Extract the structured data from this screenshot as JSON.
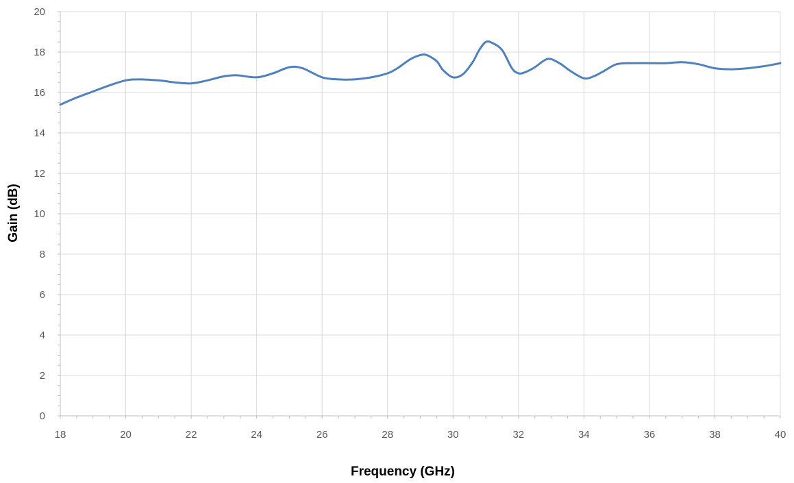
{
  "chart_data": {
    "type": "line",
    "title": "",
    "xlabel": "Frequency (GHz)",
    "ylabel": "Gain (dB)",
    "xlim": [
      18,
      40
    ],
    "ylim": [
      0,
      20
    ],
    "x_ticks": [
      "18",
      "20",
      "22",
      "24",
      "26",
      "28",
      "30",
      "32",
      "34",
      "36",
      "38",
      "40"
    ],
    "y_ticks": [
      "0",
      "2",
      "4",
      "6",
      "8",
      "10",
      "12",
      "14",
      "16",
      "18",
      "20"
    ],
    "grid": true,
    "legend": "none",
    "series": [
      {
        "color": "#4f81bd",
        "x": [
          18,
          18.5,
          19,
          19.5,
          20,
          20.4,
          21,
          21.5,
          22,
          22.5,
          23,
          23.4,
          24,
          24.5,
          25,
          25.4,
          26,
          26.5,
          27,
          27.5,
          28,
          28.3,
          28.7,
          29,
          29.2,
          29.5,
          29.7,
          30,
          30.3,
          30.6,
          30.8,
          31,
          31.2,
          31.5,
          31.8,
          32,
          32.2,
          32.5,
          32.8,
          33,
          33.3,
          33.6,
          34,
          34.3,
          34.6,
          35,
          35.5,
          36,
          36.5,
          37,
          37.5,
          38,
          38.5,
          39,
          39.5,
          40
        ],
        "y": [
          15.4,
          15.75,
          16.05,
          16.35,
          16.6,
          16.65,
          16.6,
          16.5,
          16.45,
          16.6,
          16.8,
          16.85,
          16.75,
          16.95,
          17.25,
          17.2,
          16.75,
          16.65,
          16.65,
          16.75,
          16.95,
          17.2,
          17.65,
          17.85,
          17.85,
          17.55,
          17.1,
          16.75,
          16.9,
          17.5,
          18.1,
          18.5,
          18.45,
          18.1,
          17.2,
          16.95,
          17.0,
          17.25,
          17.6,
          17.65,
          17.4,
          17.05,
          16.7,
          16.8,
          17.05,
          17.4,
          17.45,
          17.45,
          17.45,
          17.5,
          17.4,
          17.2,
          17.15,
          17.2,
          17.3,
          17.45
        ]
      }
    ]
  }
}
